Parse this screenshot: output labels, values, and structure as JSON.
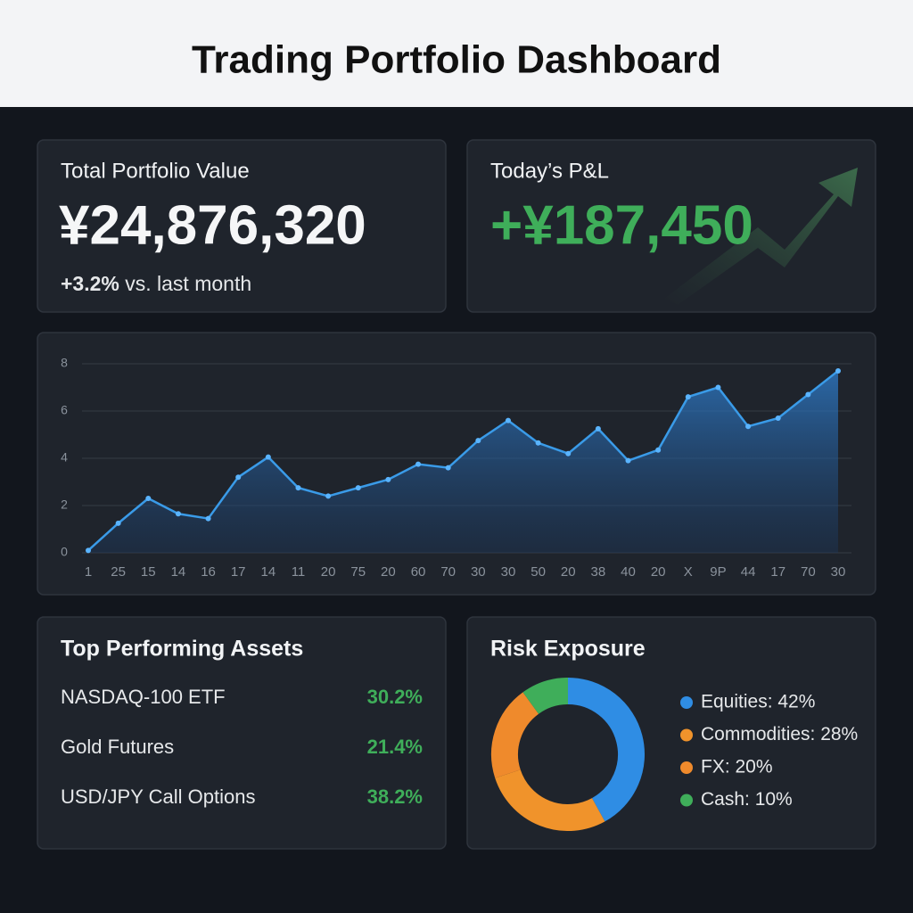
{
  "header": {
    "title": "Trading Portfolio Dashboard"
  },
  "portfolio": {
    "label": "Total Portfolio Value",
    "value": "¥24,876,320",
    "change": "+3.2%",
    "note": "vs. last month"
  },
  "pnl": {
    "label": "Today’s P&L",
    "value": "+¥187,450"
  },
  "assets": {
    "title": "Top Performing Assets",
    "rows": [
      [
        "NASDAQ-100 ETF",
        "30.2%"
      ],
      [
        "Gold Futures",
        "21.4%"
      ],
      [
        "USD/JPY Call Options",
        "38.2%"
      ]
    ]
  },
  "chart_data": [
    {
      "type": "line",
      "color": "#3a9be8",
      "categories": [
        "1",
        "25",
        "15",
        "14",
        "16",
        "17",
        "14",
        "11",
        "20",
        "75",
        "20",
        "60",
        "70",
        "30",
        "30",
        "50",
        "20",
        "38",
        "40",
        "20",
        "X",
        "9P",
        "44",
        "17",
        "70",
        "30"
      ],
      "values": [
        0.1,
        1.25,
        2.3,
        1.65,
        1.45,
        3.2,
        4.05,
        2.75,
        2.4,
        2.75,
        3.1,
        3.75,
        3.6,
        4.75,
        5.6,
        4.65,
        4.2,
        5.25,
        3.9,
        4.35,
        6.6,
        7.0,
        5.35,
        5.7,
        6.7,
        7.7
      ],
      "ylim": [
        0,
        8
      ],
      "yticks": [
        0,
        2,
        4,
        6,
        8
      ],
      "grid": true
    },
    {
      "type": "donut",
      "title": "Risk Exposure",
      "labels": [
        "Equities: 42%",
        "Commodities: 28%",
        "FX: 20%",
        "Cash: 10%"
      ],
      "values": [
        42,
        28,
        20,
        10
      ],
      "colors": [
        "#2f8de4",
        "#f0932b",
        "#ef8a2c",
        "#3fae5a"
      ]
    }
  ]
}
